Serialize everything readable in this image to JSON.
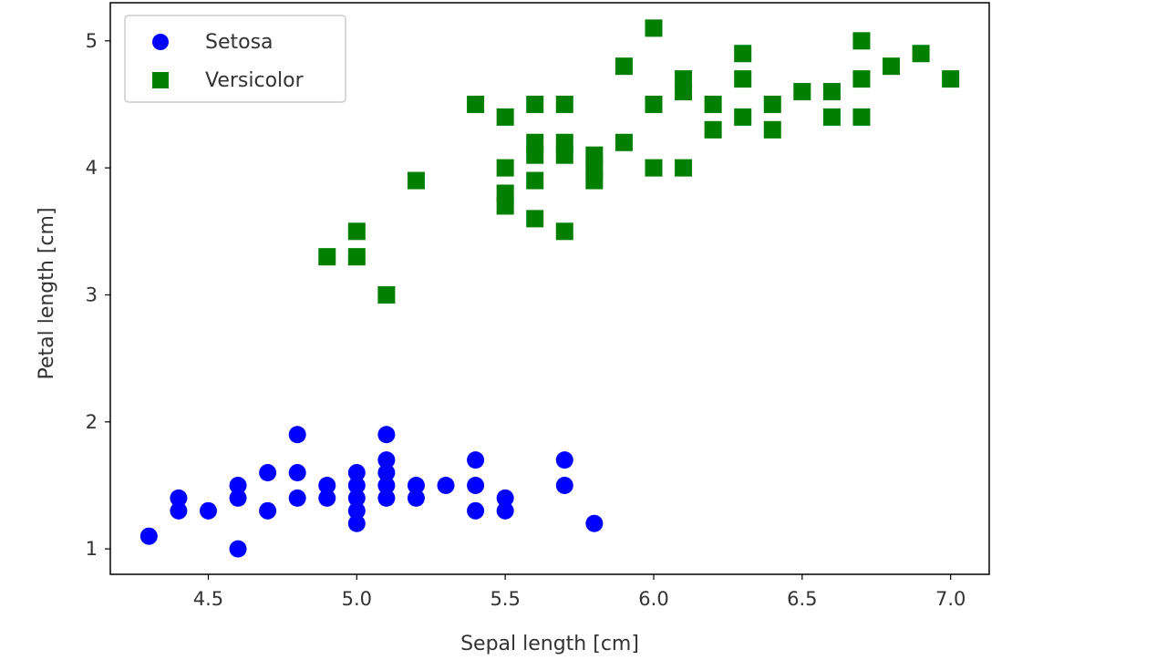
{
  "chart_data": {
    "type": "scatter",
    "title": "",
    "xlabel": "Sepal length [cm]",
    "ylabel": "Petal length [cm]",
    "xlim": [
      4.17,
      7.13
    ],
    "ylim": [
      0.8,
      5.3
    ],
    "xticks": [
      4.5,
      5.0,
      5.5,
      6.0,
      6.5,
      7.0
    ],
    "xtick_labels": [
      "4.5",
      "5.0",
      "5.5",
      "6.0",
      "6.5",
      "7.0"
    ],
    "yticks": [
      1,
      2,
      3,
      4,
      5
    ],
    "ytick_labels": [
      "1",
      "2",
      "3",
      "4",
      "5"
    ],
    "grid": false,
    "legend_position": "top-left",
    "series": [
      {
        "name": "Setosa",
        "marker": "circle",
        "color": "#0000ff",
        "points": [
          [
            4.3,
            1.1
          ],
          [
            4.4,
            1.3
          ],
          [
            4.4,
            1.4
          ],
          [
            4.5,
            1.3
          ],
          [
            4.6,
            1.0
          ],
          [
            4.6,
            1.4
          ],
          [
            4.6,
            1.5
          ],
          [
            4.7,
            1.3
          ],
          [
            4.7,
            1.6
          ],
          [
            4.8,
            1.4
          ],
          [
            4.8,
            1.6
          ],
          [
            4.8,
            1.9
          ],
          [
            4.9,
            1.4
          ],
          [
            4.9,
            1.5
          ],
          [
            5.0,
            1.2
          ],
          [
            5.0,
            1.3
          ],
          [
            5.0,
            1.4
          ],
          [
            5.0,
            1.5
          ],
          [
            5.0,
            1.6
          ],
          [
            5.1,
            1.4
          ],
          [
            5.1,
            1.5
          ],
          [
            5.1,
            1.6
          ],
          [
            5.1,
            1.7
          ],
          [
            5.1,
            1.9
          ],
          [
            5.2,
            1.4
          ],
          [
            5.2,
            1.5
          ],
          [
            5.3,
            1.5
          ],
          [
            5.4,
            1.3
          ],
          [
            5.4,
            1.5
          ],
          [
            5.4,
            1.7
          ],
          [
            5.5,
            1.3
          ],
          [
            5.5,
            1.4
          ],
          [
            5.7,
            1.5
          ],
          [
            5.7,
            1.7
          ],
          [
            5.8,
            1.2
          ]
        ]
      },
      {
        "name": "Versicolor",
        "marker": "square",
        "color": "#007f00",
        "points": [
          [
            4.9,
            3.3
          ],
          [
            5.0,
            3.3
          ],
          [
            5.0,
            3.5
          ],
          [
            5.1,
            3.0
          ],
          [
            5.2,
            3.9
          ],
          [
            5.4,
            4.5
          ],
          [
            5.5,
            3.7
          ],
          [
            5.5,
            3.8
          ],
          [
            5.5,
            4.0
          ],
          [
            5.5,
            4.4
          ],
          [
            5.6,
            3.6
          ],
          [
            5.6,
            3.9
          ],
          [
            5.6,
            4.1
          ],
          [
            5.6,
            4.2
          ],
          [
            5.6,
            4.5
          ],
          [
            5.7,
            3.5
          ],
          [
            5.7,
            4.1
          ],
          [
            5.7,
            4.2
          ],
          [
            5.7,
            4.5
          ],
          [
            5.8,
            3.9
          ],
          [
            5.8,
            4.0
          ],
          [
            5.8,
            4.1
          ],
          [
            5.9,
            4.2
          ],
          [
            5.9,
            4.8
          ],
          [
            6.0,
            4.0
          ],
          [
            6.0,
            4.5
          ],
          [
            6.0,
            5.1
          ],
          [
            6.1,
            4.0
          ],
          [
            6.1,
            4.6
          ],
          [
            6.1,
            4.7
          ],
          [
            6.2,
            4.3
          ],
          [
            6.2,
            4.5
          ],
          [
            6.3,
            4.4
          ],
          [
            6.3,
            4.7
          ],
          [
            6.3,
            4.9
          ],
          [
            6.4,
            4.3
          ],
          [
            6.4,
            4.5
          ],
          [
            6.5,
            4.6
          ],
          [
            6.6,
            4.4
          ],
          [
            6.6,
            4.6
          ],
          [
            6.7,
            4.4
          ],
          [
            6.7,
            4.7
          ],
          [
            6.7,
            5.0
          ],
          [
            6.8,
            4.8
          ],
          [
            6.9,
            4.9
          ],
          [
            7.0,
            4.7
          ]
        ]
      }
    ]
  }
}
